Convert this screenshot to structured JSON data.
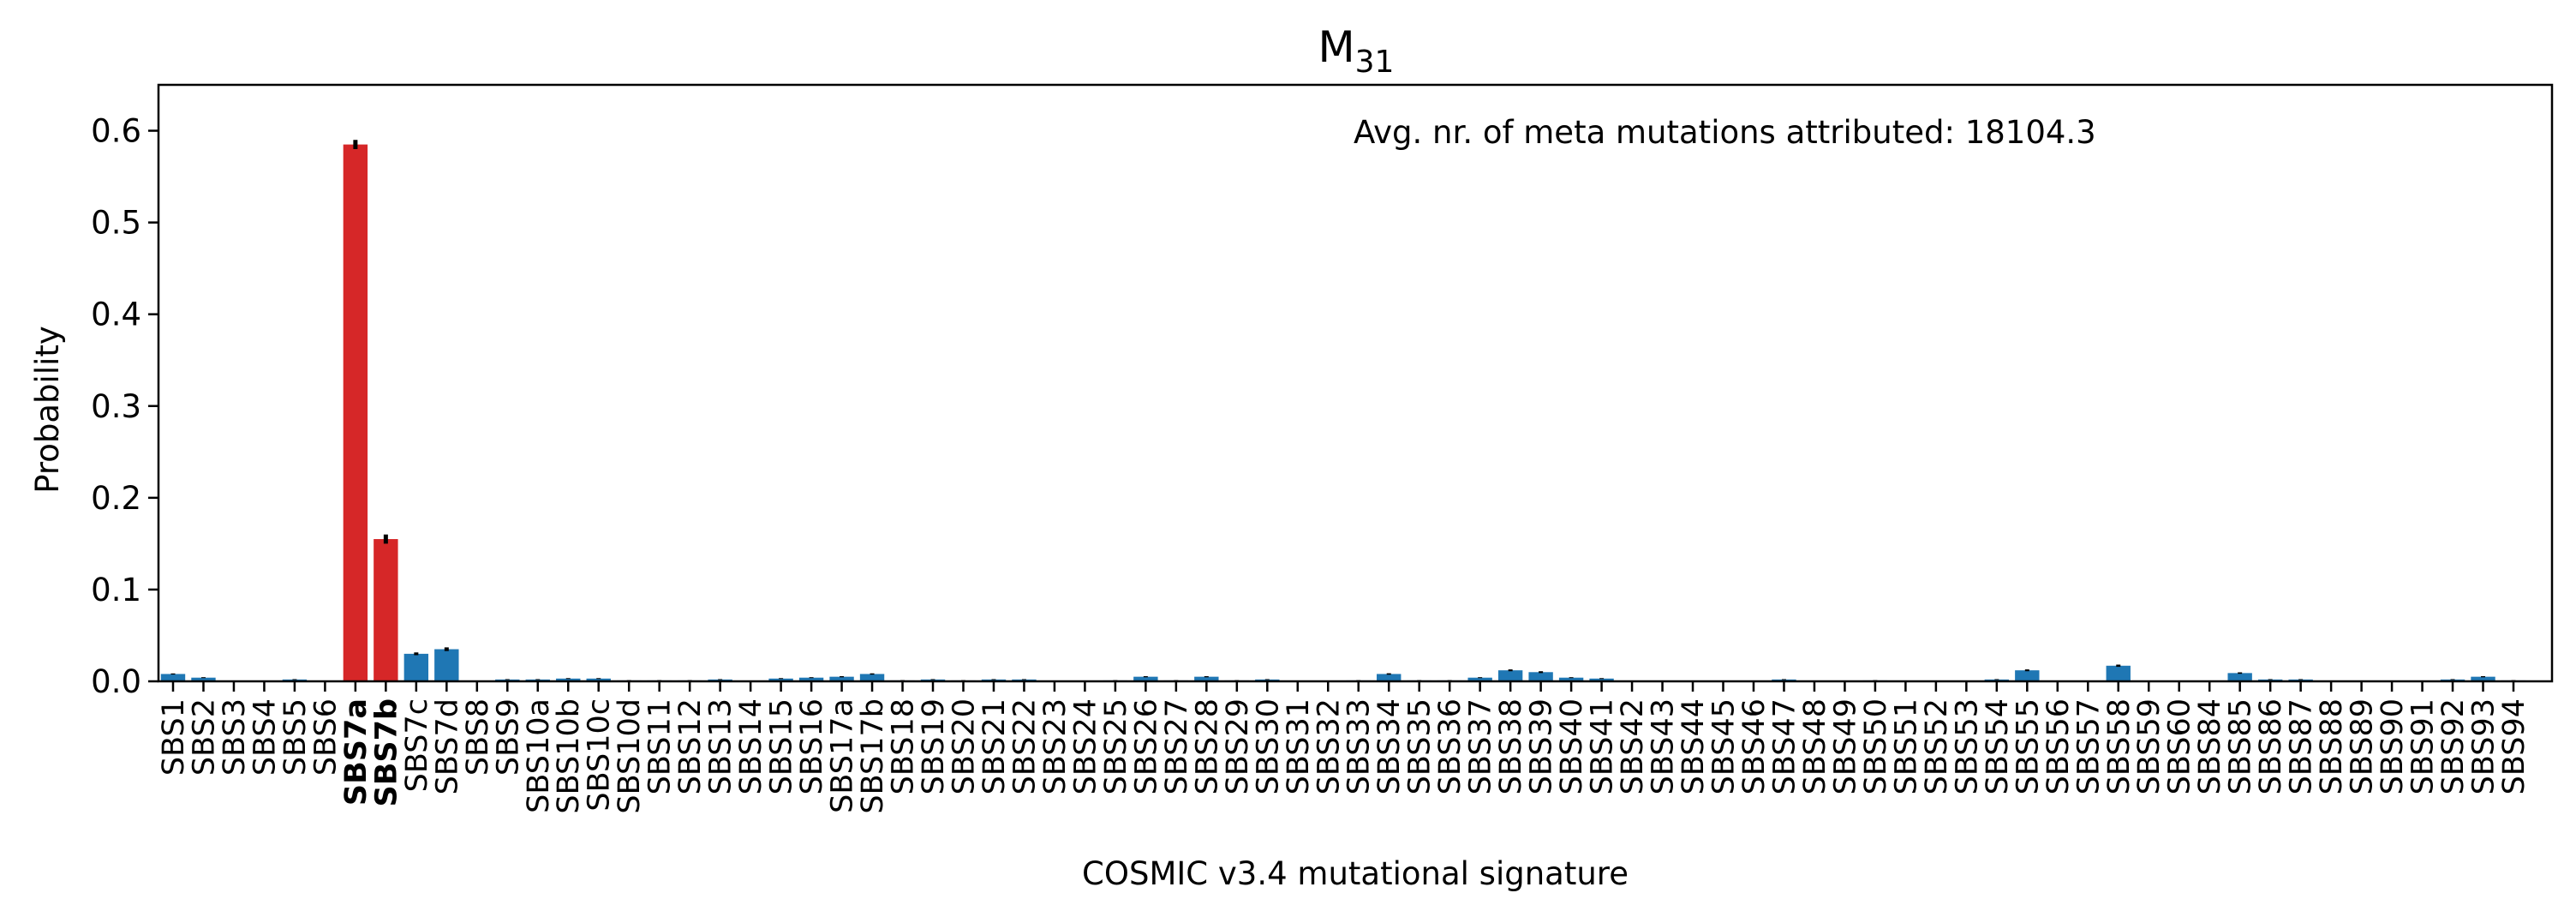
{
  "colors": {
    "highlight": "#d62728",
    "default": "#1f77b4",
    "error_bar": "#000000"
  },
  "chart_data": {
    "type": "bar",
    "title": "M",
    "title_subscript": "31",
    "xlabel": "COSMIC v3.4 mutational signature",
    "ylabel": "Probability",
    "ylim": [
      0,
      0.65
    ],
    "yticks": [
      0.0,
      0.1,
      0.2,
      0.3,
      0.4,
      0.5,
      0.6
    ],
    "grid": false,
    "annotation": "Avg. nr. of meta mutations attributed: 18104.3",
    "highlighted": [
      "SBS7a",
      "SBS7b"
    ],
    "categories": [
      "SBS1",
      "SBS2",
      "SBS3",
      "SBS4",
      "SBS5",
      "SBS6",
      "SBS7a",
      "SBS7b",
      "SBS7c",
      "SBS7d",
      "SBS8",
      "SBS9",
      "SBS10a",
      "SBS10b",
      "SBS10c",
      "SBS10d",
      "SBS11",
      "SBS12",
      "SBS13",
      "SBS14",
      "SBS15",
      "SBS16",
      "SBS17a",
      "SBS17b",
      "SBS18",
      "SBS19",
      "SBS20",
      "SBS21",
      "SBS22",
      "SBS23",
      "SBS24",
      "SBS25",
      "SBS26",
      "SBS27",
      "SBS28",
      "SBS29",
      "SBS30",
      "SBS31",
      "SBS32",
      "SBS33",
      "SBS34",
      "SBS35",
      "SBS36",
      "SBS37",
      "SBS38",
      "SBS39",
      "SBS40",
      "SBS41",
      "SBS42",
      "SBS43",
      "SBS44",
      "SBS45",
      "SBS46",
      "SBS47",
      "SBS48",
      "SBS49",
      "SBS50",
      "SBS51",
      "SBS52",
      "SBS53",
      "SBS54",
      "SBS55",
      "SBS56",
      "SBS57",
      "SBS58",
      "SBS59",
      "SBS60",
      "SBS84",
      "SBS85",
      "SBS86",
      "SBS87",
      "SBS88",
      "SBS89",
      "SBS90",
      "SBS91",
      "SBS92",
      "SBS93",
      "SBS94"
    ],
    "values": [
      0.008,
      0.004,
      0.0005,
      0.0005,
      0.002,
      0.0005,
      0.585,
      0.155,
      0.03,
      0.035,
      0.0005,
      0.002,
      0.002,
      0.003,
      0.003,
      0.001,
      0.001,
      0.001,
      0.002,
      0.0005,
      0.003,
      0.004,
      0.005,
      0.008,
      0.001,
      0.002,
      0.001,
      0.002,
      0.002,
      0.0005,
      0.0005,
      0.001,
      0.005,
      0.001,
      0.005,
      0.001,
      0.002,
      0.0005,
      0.0005,
      0.001,
      0.008,
      0.001,
      0.001,
      0.004,
      0.012,
      0.01,
      0.004,
      0.003,
      0.0005,
      0.0005,
      0.0005,
      0.0005,
      0.0005,
      0.002,
      0.0005,
      0.0005,
      0.001,
      0.0005,
      0.0005,
      0.0005,
      0.002,
      0.012,
      0.0005,
      0.0005,
      0.017,
      0.0005,
      0.0005,
      0.0005,
      0.009,
      0.002,
      0.002,
      0.0005,
      0.0005,
      0.0005,
      0.0005,
      0.002,
      0.005,
      0.001
    ],
    "errors": [
      0.0006,
      0.0005,
      0.0002,
      0.0002,
      0.0004,
      0.0002,
      0.005,
      0.005,
      0.0015,
      0.002,
      0.0002,
      0.0004,
      0.0004,
      0.0005,
      0.0005,
      0.0003,
      0.0003,
      0.0003,
      0.0004,
      0.0002,
      0.0005,
      0.0005,
      0.0006,
      0.0007,
      0.0003,
      0.0004,
      0.0003,
      0.0004,
      0.0004,
      0.0002,
      0.0002,
      0.0003,
      0.0006,
      0.0003,
      0.0006,
      0.0003,
      0.0004,
      0.0002,
      0.0002,
      0.0003,
      0.0008,
      0.0003,
      0.0003,
      0.0005,
      0.001,
      0.001,
      0.0005,
      0.0005,
      0.0002,
      0.0002,
      0.0002,
      0.0002,
      0.0002,
      0.0004,
      0.0002,
      0.0002,
      0.0003,
      0.0002,
      0.0002,
      0.0002,
      0.0004,
      0.001,
      0.0002,
      0.0002,
      0.0012,
      0.0002,
      0.0002,
      0.0002,
      0.0008,
      0.0004,
      0.0004,
      0.0002,
      0.0002,
      0.0002,
      0.0002,
      0.0004,
      0.0006,
      0.0003
    ]
  }
}
